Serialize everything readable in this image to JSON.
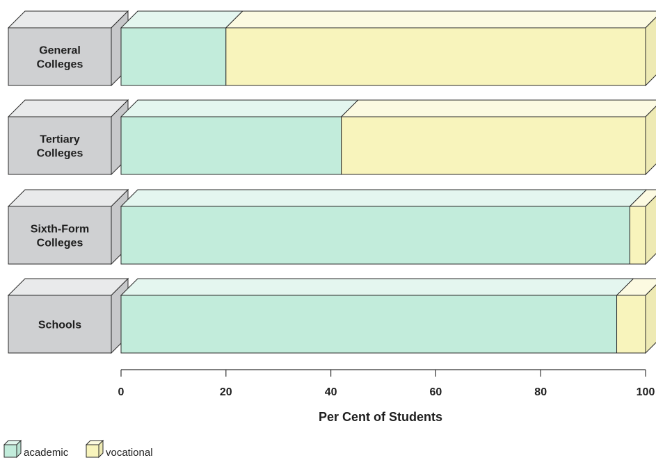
{
  "chart_data": {
    "type": "bar",
    "orientation": "horizontal",
    "stacked": true,
    "categories": [
      "General\nColleges",
      "Tertiary\nColleges",
      "Sixth-Form\nColleges",
      "Schools"
    ],
    "series": [
      {
        "name": "academic",
        "values": [
          20,
          42,
          97,
          94.5
        ]
      },
      {
        "name": "vocational",
        "values": [
          80,
          58,
          3,
          5.5
        ]
      }
    ],
    "xlabel": "Per Cent of Students",
    "xlim": [
      0,
      100
    ],
    "xticks": [
      0,
      20,
      40,
      60,
      80,
      100
    ],
    "grid": false,
    "legend_position": "bottom-left",
    "colors": {
      "academic": "#c2ecdb",
      "vocational": "#f8f4bc",
      "label_box": "#cfd0d2"
    }
  }
}
